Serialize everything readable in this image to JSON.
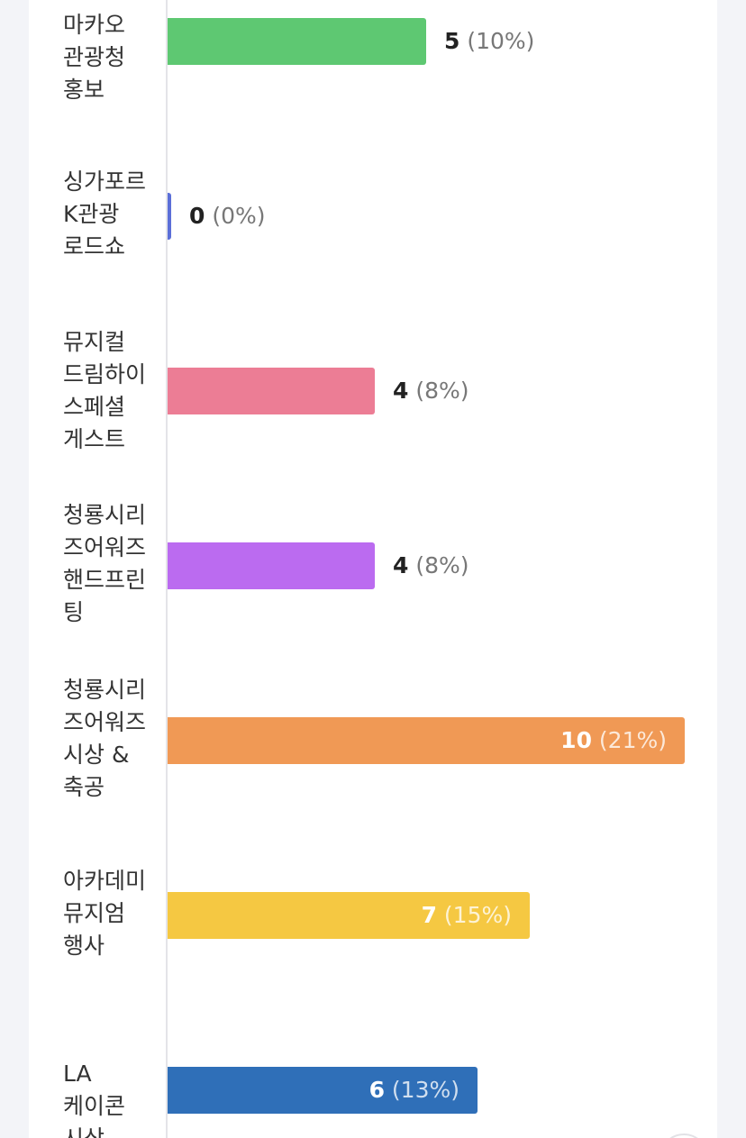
{
  "chart_data": {
    "type": "bar",
    "orientation": "horizontal",
    "categories": [
      "마카오 관광청 홍보",
      "싱가포르 K관광 로드쇼",
      "뮤지컬 드림하이 스페셜 게스트",
      "청룡시리즈어워즈 핸드프린팅",
      "청룡시리즈어워즈 시상 & 축공",
      "아카데미 뮤지엄 행사",
      "LA 케이콘 시상"
    ],
    "values": [
      5,
      0,
      4,
      4,
      10,
      7,
      6
    ],
    "percent_labels": [
      "(10%)",
      "(0%)",
      "(8%)",
      "(8%)",
      "(21%)",
      "(15%)",
      "(13%)"
    ],
    "colors": [
      "#5ec872",
      "#5b6fd8",
      "#ec7d95",
      "#bb6bf0",
      "#f09955",
      "#f5c842",
      "#2f6fb8"
    ],
    "xlim": [
      0,
      10
    ],
    "grid": false,
    "legend": "none"
  }
}
